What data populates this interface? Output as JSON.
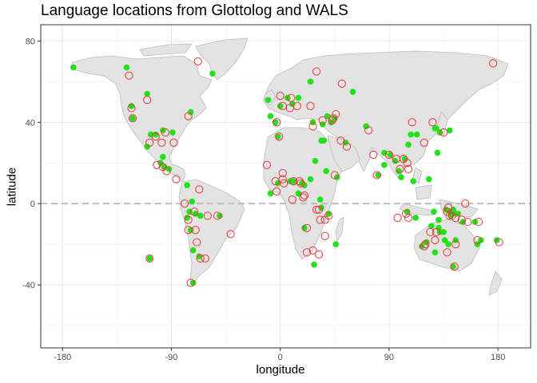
{
  "chart_data": {
    "type": "scatter",
    "title": "Language locations from Glottolog and WALS",
    "xlabel": "longitude",
    "ylabel": "latitude",
    "xlim": [
      -198,
      207
    ],
    "ylim": [
      -71,
      88
    ],
    "x_ticks": [
      -180,
      -90,
      0,
      90,
      180
    ],
    "x_tick_labels": [
      "-180",
      "-90",
      "0",
      "90",
      "180"
    ],
    "y_ticks": [
      -40,
      0,
      40,
      80
    ],
    "y_tick_labels": [
      "-40",
      "0",
      "40",
      "80"
    ],
    "grid": true,
    "reference_line": {
      "y": 0,
      "style": "dashed"
    },
    "background_layer": "world map",
    "series": [
      {
        "marker": "filled circle",
        "color": "#22e01a",
        "points": [
          [
            -171,
            67
          ],
          [
            -127,
            67
          ],
          [
            -123,
            48
          ],
          [
            -122,
            42
          ],
          [
            -110,
            54
          ],
          [
            -110,
            28
          ],
          [
            -107,
            34
          ],
          [
            -103,
            34
          ],
          [
            -97,
            36
          ],
          [
            -97,
            23
          ],
          [
            -99,
            20
          ],
          [
            -96,
            18
          ],
          [
            -92,
            17
          ],
          [
            -89,
            35
          ],
          [
            -74,
            45
          ],
          [
            -77,
            9
          ],
          [
            -73,
            1
          ],
          [
            -75,
            -4
          ],
          [
            -77,
            -7
          ],
          [
            -74,
            -13
          ],
          [
            -70,
            -5
          ],
          [
            -66,
            -6
          ],
          [
            -50,
            -6
          ],
          [
            -72,
            -23
          ],
          [
            -67,
            -26
          ],
          [
            -72,
            -39
          ],
          [
            -108,
            -27
          ],
          [
            -56,
            64
          ],
          [
            -10,
            51
          ],
          [
            -8,
            43
          ],
          [
            -4,
            40
          ],
          [
            -2,
            33
          ],
          [
            -2,
            10
          ],
          [
            -8,
            5
          ],
          [
            0,
            48
          ],
          [
            6,
            52
          ],
          [
            10,
            49
          ],
          [
            15,
            52
          ],
          [
            8,
            11
          ],
          [
            11,
            11
          ],
          [
            18,
            10
          ],
          [
            15,
            5
          ],
          [
            20,
            9
          ],
          [
            25,
            12
          ],
          [
            29,
            21
          ],
          [
            27,
            40
          ],
          [
            25,
            60
          ],
          [
            20,
            -12
          ],
          [
            33,
            2
          ],
          [
            34,
            -2
          ],
          [
            28,
            -30
          ],
          [
            46,
            -20
          ],
          [
            39,
            43
          ],
          [
            35,
            39
          ],
          [
            42,
            40
          ],
          [
            34,
            31
          ],
          [
            38,
            16
          ],
          [
            36,
            31
          ],
          [
            45,
            42
          ],
          [
            40,
            -5
          ],
          [
            60,
            55
          ],
          [
            54,
            30
          ],
          [
            47,
            13
          ],
          [
            71,
            38
          ],
          [
            86,
            25
          ],
          [
            81,
            14
          ],
          [
            91,
            24
          ],
          [
            86,
            19
          ],
          [
            108,
            34
          ],
          [
            113,
            34
          ],
          [
            95,
            21
          ],
          [
            98,
            16
          ],
          [
            106,
            29
          ],
          [
            100,
            13
          ],
          [
            103,
            22
          ],
          [
            110,
            11
          ],
          [
            128,
            37
          ],
          [
            129,
            37
          ],
          [
            132,
            35
          ],
          [
            140,
            36
          ],
          [
            130,
            25
          ],
          [
            123,
            12
          ],
          [
            127,
            -4
          ],
          [
            131,
            -8
          ],
          [
            112,
            -7
          ],
          [
            105,
            -4
          ],
          [
            137,
            -3
          ],
          [
            140,
            -4
          ],
          [
            141,
            -6
          ],
          [
            142,
            -4
          ],
          [
            145,
            -5
          ],
          [
            143,
            -3
          ],
          [
            147,
            -5
          ],
          [
            151,
            -9
          ],
          [
            161,
            -9
          ],
          [
            163,
            -20
          ],
          [
            145,
            -18
          ],
          [
            139,
            -20
          ],
          [
            132,
            -14
          ],
          [
            131,
            -12
          ],
          [
            121,
            -19
          ],
          [
            125,
            -11
          ],
          [
            135,
            -14
          ],
          [
            136,
            -18
          ],
          [
            117,
            -21
          ],
          [
            128,
            -24
          ],
          [
            143,
            -31
          ],
          [
            166,
            -18
          ],
          [
            179,
            -18
          ]
        ]
      },
      {
        "marker": "open circle",
        "color": "#f2333a",
        "points": [
          [
            -125,
            63
          ],
          [
            -110,
            51
          ],
          [
            -123,
            47
          ],
          [
            -122,
            42
          ],
          [
            -103,
            33
          ],
          [
            -108,
            30
          ],
          [
            -95,
            35
          ],
          [
            -98,
            30
          ],
          [
            -88,
            30
          ],
          [
            -102,
            19
          ],
          [
            -97,
            18
          ],
          [
            -94,
            16
          ],
          [
            -86,
            12
          ],
          [
            -76,
            43
          ],
          [
            -79,
            0
          ],
          [
            -76,
            -8
          ],
          [
            -71,
            -4
          ],
          [
            -70,
            -13
          ],
          [
            -69,
            -19
          ],
          [
            -76,
            -13
          ],
          [
            -66,
            -27
          ],
          [
            -74,
            -39
          ],
          [
            -108,
            -27
          ],
          [
            -67,
            7
          ],
          [
            -60,
            -6
          ],
          [
            -62,
            -27
          ],
          [
            -52,
            -6
          ],
          [
            -41,
            -15
          ],
          [
            -68,
            70
          ],
          [
            0,
            53
          ],
          [
            2,
            48
          ],
          [
            -3,
            40
          ],
          [
            9,
            52
          ],
          [
            14,
            48
          ],
          [
            8,
            47
          ],
          [
            2,
            12
          ],
          [
            -4,
            11
          ],
          [
            -11,
            19
          ],
          [
            2,
            15
          ],
          [
            3,
            10
          ],
          [
            11,
            11
          ],
          [
            16,
            11
          ],
          [
            17,
            10
          ],
          [
            19,
            3
          ],
          [
            20,
            4
          ],
          [
            10,
            2
          ],
          [
            -3,
            6
          ],
          [
            -1,
            33
          ],
          [
            25,
            48
          ],
          [
            27,
            38
          ],
          [
            30,
            65
          ],
          [
            22,
            -12
          ],
          [
            32,
            -3
          ],
          [
            33,
            -8
          ],
          [
            32,
            -25
          ],
          [
            22,
            -24
          ],
          [
            27,
            -23
          ],
          [
            37,
            -16
          ],
          [
            37,
            -8
          ],
          [
            30,
            -3
          ],
          [
            45,
            14
          ],
          [
            40,
            -6
          ],
          [
            51,
            59
          ],
          [
            44,
            42
          ],
          [
            35,
            41
          ],
          [
            43,
            41
          ],
          [
            50,
            31
          ],
          [
            46,
            44
          ],
          [
            55,
            28
          ],
          [
            73,
            36
          ],
          [
            77,
            24
          ],
          [
            80,
            14
          ],
          [
            90,
            24
          ],
          [
            96,
            22
          ],
          [
            99,
            17
          ],
          [
            102,
            22
          ],
          [
            106,
            17
          ],
          [
            109,
            40
          ],
          [
            105,
            20
          ],
          [
            119,
            30
          ],
          [
            126,
            40
          ],
          [
            135,
            35
          ],
          [
            153,
            0
          ],
          [
            164,
            -9
          ],
          [
            139,
            -2
          ],
          [
            145,
            -7
          ],
          [
            150,
            -8
          ],
          [
            138,
            -4
          ],
          [
            140,
            -6
          ],
          [
            142,
            -6
          ],
          [
            119,
            -21
          ],
          [
            144,
            -31
          ],
          [
            138,
            -24
          ],
          [
            145,
            -20
          ],
          [
            129,
            -14
          ],
          [
            128,
            -18
          ],
          [
            106,
            -7
          ],
          [
            155,
            -9
          ],
          [
            176,
            69
          ],
          [
            181,
            -19
          ],
          [
            163,
            -18
          ],
          [
            124,
            -14
          ],
          [
            120,
            -20
          ],
          [
            104,
            -5
          ],
          [
            97,
            -7
          ]
        ]
      }
    ]
  }
}
